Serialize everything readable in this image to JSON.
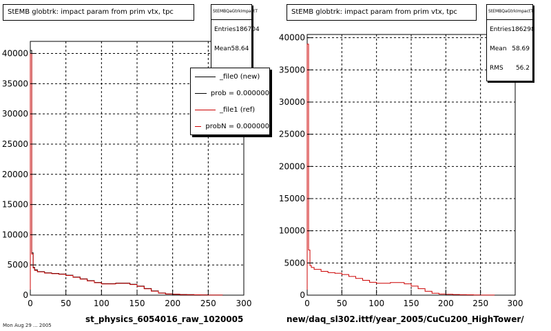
{
  "colors": {
    "new": "#000000",
    "ref": "#cc0000",
    "grid": "#000000"
  },
  "footer": "Mon Aug 29 ... 2005",
  "legend": {
    "items": [
      {
        "label": "_file0 (new)",
        "color": "#000000"
      },
      {
        "label": "prob = 0.000000",
        "color": "#000000"
      },
      {
        "label": "_file1 (ref)",
        "color": "#cc0000"
      },
      {
        "label": "probN = 0.000000",
        "color": "#cc0000"
      }
    ]
  },
  "left": {
    "title": "StEMB globtrk: impact param from prim vtx, tpc",
    "stats": {
      "name": "StEMBQaGtrkImpactT",
      "entries_label": "Entries",
      "entries": "186704",
      "mean_label": "Mean",
      "mean": "58.64"
    },
    "xlabel": "st_physics_6054016_raw_1020005"
  },
  "right": {
    "title": "StEMB globtrk: impact param from prim vtx, tpc",
    "stats": {
      "name": "StEMBQaGtrkImpactT",
      "entries_label": "Entries",
      "entries": "186298",
      "mean_label": "Mean",
      "mean": "58.69",
      "rms_label": "RMS",
      "rms": "56.2"
    },
    "xlabel": "new/daq_sl302.ittf/year_2005/CuCu200_HighTower/"
  },
  "chart_data": [
    {
      "type": "line",
      "title": "StEMB globtrk: impact param from prim vtx, tpc",
      "xlabel": "st_physics_6054016_raw_1020005",
      "ylabel": "",
      "xlim": [
        0,
        300
      ],
      "ylim": [
        0,
        42000
      ],
      "x_ticks": [
        0,
        50,
        100,
        150,
        200,
        250,
        300
      ],
      "y_ticks": [
        0,
        5000,
        10000,
        15000,
        20000,
        25000,
        30000,
        35000,
        40000
      ],
      "grid": true,
      "legend_position": "top-right",
      "series": [
        {
          "name": "_file0 (new)",
          "color": "#000000",
          "x": [
            0,
            2,
            4,
            6,
            10,
            20,
            30,
            40,
            50,
            60,
            70,
            80,
            90,
            100,
            110,
            120,
            130,
            140,
            150,
            160,
            170,
            180,
            190,
            200,
            210,
            220,
            230,
            240,
            250,
            260,
            270
          ],
          "y": [
            40500,
            7000,
            4600,
            4200,
            3900,
            3700,
            3600,
            3500,
            3300,
            3000,
            2700,
            2400,
            2100,
            1900,
            1900,
            2000,
            2000,
            1800,
            1500,
            1100,
            700,
            350,
            200,
            150,
            100,
            80,
            60,
            40,
            20,
            10,
            0
          ]
        },
        {
          "name": "_file1 (ref)",
          "color": "#cc0000",
          "x": [
            0,
            2,
            4,
            6,
            10,
            20,
            30,
            40,
            50,
            60,
            70,
            80,
            90,
            100,
            110,
            120,
            130,
            140,
            150,
            160,
            170,
            180,
            190,
            200,
            210,
            220,
            230,
            240,
            250,
            260,
            270
          ],
          "y": [
            40000,
            6800,
            4500,
            4100,
            3850,
            3650,
            3550,
            3450,
            3250,
            2950,
            2650,
            2350,
            2050,
            1850,
            1850,
            1950,
            1950,
            1750,
            1450,
            1050,
            650,
            330,
            190,
            140,
            90,
            70,
            50,
            30,
            15,
            8,
            0
          ]
        }
      ]
    },
    {
      "type": "line",
      "title": "StEMB globtrk: impact param from prim vtx, tpc",
      "xlabel": "new/daq_sl302.ittf/year_2005/CuCu200_HighTower/",
      "ylabel": "",
      "xlim": [
        0,
        300
      ],
      "ylim": [
        0,
        40500
      ],
      "x_ticks": [
        0,
        50,
        100,
        150,
        200,
        250,
        300
      ],
      "y_ticks": [
        0,
        5000,
        10000,
        15000,
        20000,
        25000,
        30000,
        35000,
        40000
      ],
      "grid": true,
      "series": [
        {
          "name": "",
          "color": "#cc0000",
          "x": [
            0,
            2,
            4,
            6,
            10,
            20,
            30,
            40,
            50,
            60,
            70,
            80,
            90,
            100,
            110,
            120,
            130,
            140,
            150,
            160,
            170,
            180,
            190,
            200,
            210,
            220,
            230,
            240,
            250,
            260,
            270
          ],
          "y": [
            39000,
            7000,
            4600,
            4300,
            4000,
            3700,
            3500,
            3400,
            3200,
            2900,
            2600,
            2300,
            2000,
            1850,
            1850,
            1950,
            1950,
            1750,
            1400,
            1000,
            600,
            300,
            180,
            130,
            90,
            70,
            50,
            30,
            15,
            8,
            0
          ]
        }
      ]
    }
  ]
}
